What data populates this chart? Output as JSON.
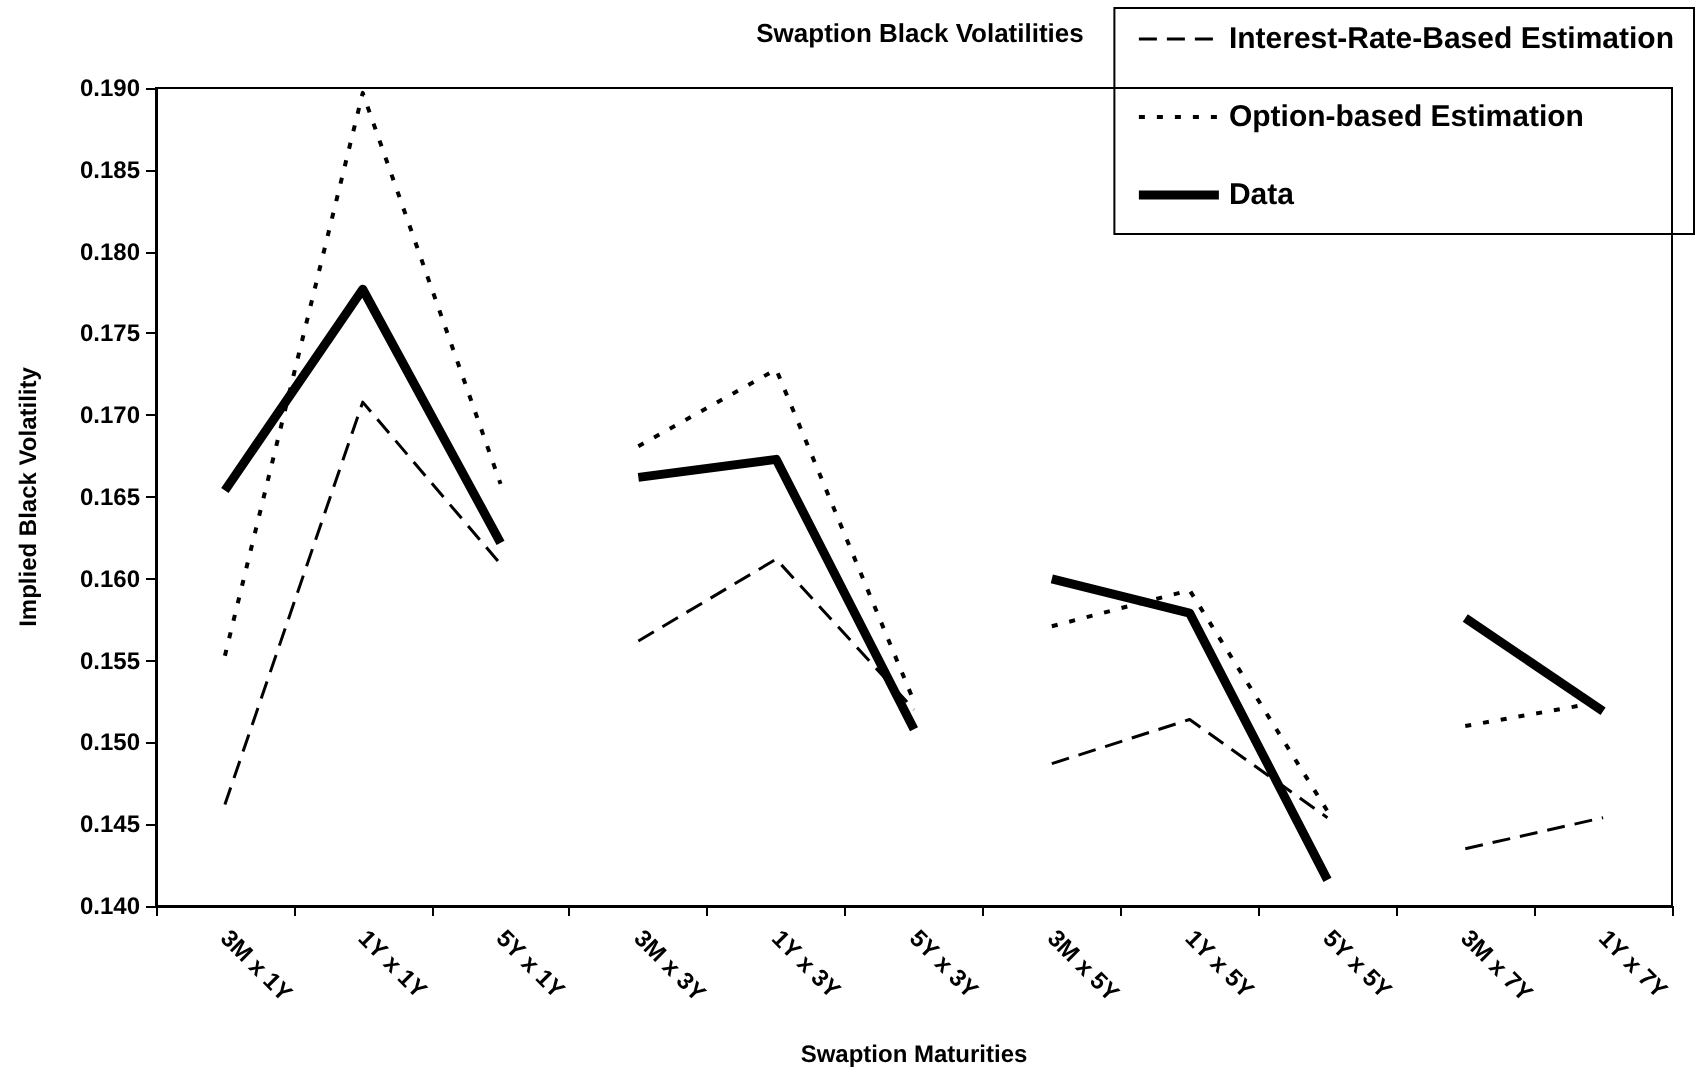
{
  "chart_data": {
    "type": "line",
    "title": "Swaption Black Volatilities",
    "xlabel": "Swaption Maturities",
    "ylabel": "Implied Black Volatility",
    "categories": [
      "3M x 1Y",
      "1Y x 1Y",
      "5Y x 1Y",
      "3M x 3Y",
      "1Y x 3Y",
      "5Y x 3Y",
      "3M x 5Y",
      "1Y x 5Y",
      "5Y x 5Y",
      "3M x 7Y",
      "1Y x 7Y"
    ],
    "ylim": [
      0.14,
      0.19
    ],
    "yticks": [
      {
        "value": 0.14,
        "label": "0.140"
      },
      {
        "value": 0.145,
        "label": "0.145"
      },
      {
        "value": 0.15,
        "label": "0.150"
      },
      {
        "value": 0.155,
        "label": "0.155"
      },
      {
        "value": 0.16,
        "label": "0.160"
      },
      {
        "value": 0.165,
        "label": "0.165"
      },
      {
        "value": 0.17,
        "label": "0.170"
      },
      {
        "value": 0.175,
        "label": "0.175"
      },
      {
        "value": 0.18,
        "label": "0.180"
      },
      {
        "value": 0.185,
        "label": "0.185"
      },
      {
        "value": 0.19,
        "label": "0.190"
      }
    ],
    "legend": "top right",
    "marker": "none",
    "series": [
      {
        "name": "Interest-Rate-Based Estimation",
        "color": "#000000",
        "line_style": "dashed",
        "values": [
          0.1462,
          0.1708,
          0.1609,
          null,
          null,
          null,
          null,
          null,
          null,
          null,
          null
        ]
      },
      {
        "name": "Option-based Estimation",
        "color": "#000000",
        "line_style": "dotted",
        "values": [
          0.1553,
          0.1897,
          0.1658,
          null,
          null,
          null,
          null,
          null,
          null,
          null,
          null
        ]
      },
      {
        "name": "Data",
        "color": "#000000",
        "line_style": "solid",
        "values": [
          0.1654,
          0.1777,
          0.1622,
          null,
          null,
          null,
          null,
          null,
          null,
          null,
          null
        ]
      },
      {
        "color": "#000000",
        "line_style": "dashed",
        "values": [
          null,
          null,
          null,
          0.1562,
          0.1612,
          0.152,
          null,
          null,
          null,
          null,
          null
        ]
      },
      {
        "color": "#000000",
        "line_style": "dotted",
        "values": [
          null,
          null,
          null,
          0.1681,
          0.1728,
          0.1525,
          null,
          null,
          null,
          null,
          null
        ]
      },
      {
        "color": "#000000",
        "line_style": "solid",
        "values": [
          null,
          null,
          null,
          0.1662,
          0.1673,
          0.1508,
          null,
          null,
          null,
          null,
          null
        ]
      },
      {
        "color": "#000000",
        "line_style": "dashed",
        "values": [
          null,
          null,
          null,
          null,
          null,
          null,
          0.1487,
          0.1514,
          0.1454,
          null,
          null
        ]
      },
      {
        "color": "#000000",
        "line_style": "dotted",
        "values": [
          null,
          null,
          null,
          null,
          null,
          null,
          0.1571,
          0.1593,
          0.1458,
          null,
          null
        ]
      },
      {
        "color": "#000000",
        "line_style": "solid",
        "values": [
          null,
          null,
          null,
          null,
          null,
          null,
          0.16,
          0.1579,
          0.1416,
          null,
          null
        ]
      },
      {
        "color": "#000000",
        "line_style": "dashed",
        "values": [
          null,
          null,
          null,
          null,
          null,
          null,
          null,
          null,
          null,
          0.1435,
          0.1454
        ]
      },
      {
        "color": "#000000",
        "line_style": "dotted",
        "values": [
          null,
          null,
          null,
          null,
          null,
          null,
          null,
          null,
          null,
          0.151,
          0.1525
        ]
      },
      {
        "color": "#000000",
        "line_style": "solid",
        "values": [
          null,
          null,
          null,
          null,
          null,
          null,
          null,
          null,
          null,
          0.1576,
          0.1519
        ]
      }
    ]
  }
}
